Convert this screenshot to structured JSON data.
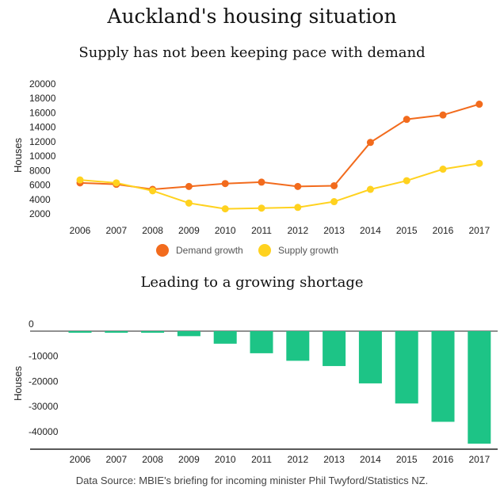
{
  "title": "Auckland's housing situation",
  "source": "Data Source: MBIE's briefing for incoming minister Phil Twyford/Statistics NZ.",
  "colors": {
    "demand": "#f26b1d",
    "supply": "#ffd21f",
    "shortage": "#1dc486"
  },
  "chart_data": [
    {
      "type": "line",
      "title": "Supply has not been keeping pace with demand",
      "xlabel": "",
      "ylabel": "Houses",
      "ylim": [
        2000,
        20000
      ],
      "yticks": [
        "20000",
        "18000",
        "16000",
        "14000",
        "12000",
        "10000",
        "8000",
        "6000",
        "4000",
        "2000"
      ],
      "categories": [
        "2006",
        "2007",
        "2008",
        "2009",
        "2010",
        "2011",
        "2012",
        "2013",
        "2014",
        "2015",
        "2016",
        "2017"
      ],
      "series": [
        {
          "name": "Demand growth",
          "values": [
            6300,
            6100,
            5400,
            5800,
            6200,
            6400,
            5800,
            5900,
            11900,
            15100,
            15700,
            17200
          ]
        },
        {
          "name": "Supply growth",
          "values": [
            6700,
            6300,
            5200,
            3500,
            2700,
            2800,
            2900,
            3700,
            5400,
            6600,
            8200,
            9000
          ]
        }
      ],
      "legend": "bottom"
    },
    {
      "type": "bar",
      "title": "Leading to a growing shortage",
      "xlabel": "",
      "ylabel": "Houses",
      "ylim": [
        -47000,
        0
      ],
      "yticks": [
        "0",
        "-10000",
        "-20000",
        "-30000",
        "-40000"
      ],
      "categories": [
        "2006",
        "2007",
        "2008",
        "2009",
        "2010",
        "2011",
        "2012",
        "2013",
        "2014",
        "2015",
        "2016",
        "2017"
      ],
      "values": [
        -400,
        -200,
        -200,
        -2000,
        -5000,
        -8800,
        -11800,
        -13900,
        -20800,
        -28800,
        -36100,
        -44800
      ]
    }
  ]
}
